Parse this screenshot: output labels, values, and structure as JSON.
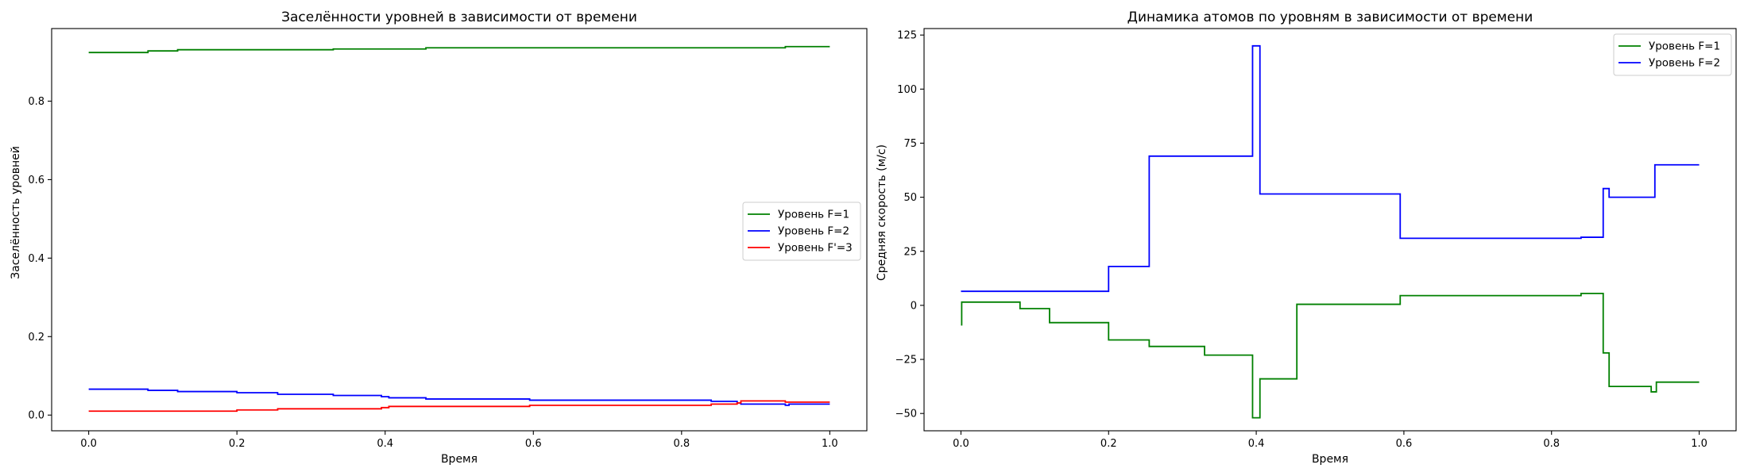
{
  "chart_data": [
    {
      "type": "line",
      "step": true,
      "title": "Заселённости уровней в зависимости от времени",
      "xlabel": "Время",
      "ylabel": "Заселённость уровней",
      "xlim": [
        -0.05,
        1.05
      ],
      "ylim": [
        -0.04,
        0.985
      ],
      "xticks": [
        0.0,
        0.2,
        0.4,
        0.6,
        0.8,
        1.0
      ],
      "xtick_labels": [
        "0.0",
        "0.2",
        "0.4",
        "0.6",
        "0.8",
        "1.0"
      ],
      "yticks": [
        0.0,
        0.2,
        0.4,
        0.6,
        0.8
      ],
      "ytick_labels": [
        "0.0",
        "0.2",
        "0.4",
        "0.6",
        "0.8"
      ],
      "legend_position": "center-right",
      "series": [
        {
          "name": "Уровень F=1",
          "color": "#008000",
          "points": [
            [
              0.0,
              0.924
            ],
            [
              0.08,
              0.928
            ],
            [
              0.12,
              0.931
            ],
            [
              0.33,
              0.933
            ],
            [
              0.455,
              0.936
            ],
            [
              0.94,
              0.939
            ],
            [
              1.0,
              0.939
            ]
          ]
        },
        {
          "name": "Уровень F=2",
          "color": "#0000ff",
          "points": [
            [
              0.0,
              0.066
            ],
            [
              0.08,
              0.063
            ],
            [
              0.12,
              0.06
            ],
            [
              0.2,
              0.057
            ],
            [
              0.255,
              0.053
            ],
            [
              0.33,
              0.05
            ],
            [
              0.395,
              0.047
            ],
            [
              0.405,
              0.044
            ],
            [
              0.455,
              0.041
            ],
            [
              0.595,
              0.038
            ],
            [
              0.84,
              0.035
            ],
            [
              0.875,
              0.031
            ],
            [
              0.88,
              0.028
            ],
            [
              0.94,
              0.025
            ],
            [
              0.945,
              0.028
            ],
            [
              1.0,
              0.028
            ]
          ]
        },
        {
          "name": "Уровень F'=3",
          "color": "#ff0000",
          "points": [
            [
              0.0,
              0.01
            ],
            [
              0.2,
              0.013
            ],
            [
              0.255,
              0.016
            ],
            [
              0.395,
              0.019
            ],
            [
              0.405,
              0.022
            ],
            [
              0.595,
              0.025
            ],
            [
              0.84,
              0.028
            ],
            [
              0.875,
              0.031
            ],
            [
              0.88,
              0.036
            ],
            [
              0.94,
              0.033
            ],
            [
              1.0,
              0.033
            ]
          ]
        }
      ]
    },
    {
      "type": "line",
      "step": true,
      "title": "Динамика атомов по уровням в зависимости от времени",
      "xlabel": "Время",
      "ylabel": "Средняя скорость (м/с)",
      "xlim": [
        -0.05,
        1.05
      ],
      "ylim": [
        -58,
        128
      ],
      "xticks": [
        0.0,
        0.2,
        0.4,
        0.6,
        0.8,
        1.0
      ],
      "xtick_labels": [
        "0.0",
        "0.2",
        "0.4",
        "0.6",
        "0.8",
        "1.0"
      ],
      "yticks": [
        -50,
        -25,
        0,
        25,
        50,
        75,
        100,
        125
      ],
      "ytick_labels": [
        "−50",
        "−25",
        "0",
        "25",
        "50",
        "75",
        "100",
        "125"
      ],
      "legend_position": "upper-right",
      "series": [
        {
          "name": "Уровень F=1",
          "color": "#008000",
          "points": [
            [
              0.0,
              -9
            ],
            [
              0.001,
              1.5
            ],
            [
              0.08,
              -1.5
            ],
            [
              0.12,
              -8
            ],
            [
              0.2,
              -16
            ],
            [
              0.255,
              -19
            ],
            [
              0.33,
              -23
            ],
            [
              0.395,
              -52
            ],
            [
              0.405,
              -34
            ],
            [
              0.455,
              0.5
            ],
            [
              0.595,
              4.5
            ],
            [
              0.84,
              5.5
            ],
            [
              0.87,
              -22
            ],
            [
              0.878,
              -37.5
            ],
            [
              0.935,
              -40
            ],
            [
              0.942,
              -35.5
            ],
            [
              1.0,
              -35.5
            ]
          ]
        },
        {
          "name": "Уровень F=2",
          "color": "#0000ff",
          "points": [
            [
              0.0,
              6.5
            ],
            [
              0.2,
              18
            ],
            [
              0.255,
              69
            ],
            [
              0.395,
              120
            ],
            [
              0.405,
              51.5
            ],
            [
              0.595,
              31
            ],
            [
              0.84,
              31.5
            ],
            [
              0.87,
              54
            ],
            [
              0.878,
              50
            ],
            [
              0.94,
              65
            ],
            [
              1.0,
              65
            ]
          ]
        }
      ]
    }
  ]
}
